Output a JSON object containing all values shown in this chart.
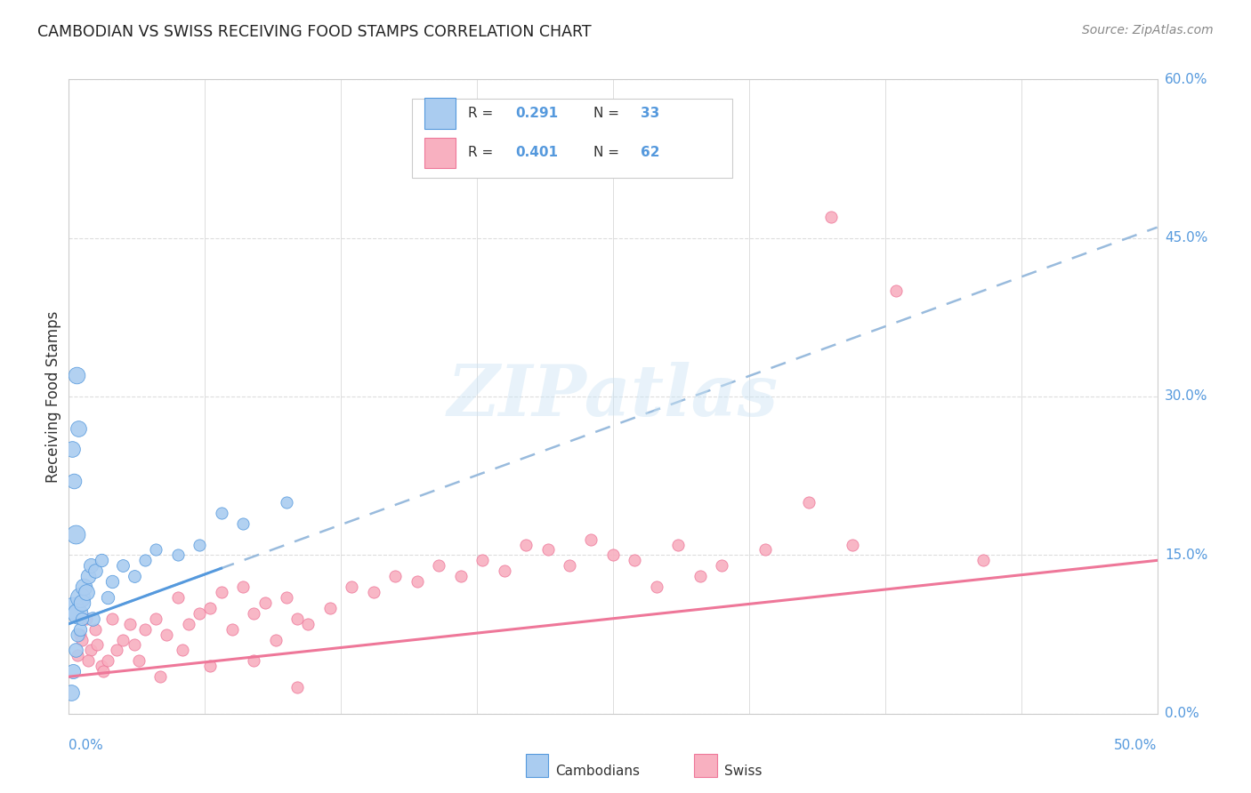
{
  "title": "CAMBODIAN VS SWISS RECEIVING FOOD STAMPS CORRELATION CHART",
  "source": "Source: ZipAtlas.com",
  "ylabel": "Receiving Food Stamps",
  "watermark": "ZIPatlas",
  "blue_color": "#aaccf0",
  "pink_color": "#f8b0c0",
  "blue_line_color": "#5599dd",
  "pink_line_color": "#ee7799",
  "blue_dashed_color": "#99bbdd",
  "xlim": [
    0.0,
    50.0
  ],
  "ylim": [
    0.0,
    60.0
  ],
  "x_ticks_pct": [
    0.0,
    50.0
  ],
  "y_ticks_pct": [
    0.0,
    15.0,
    30.0,
    45.0,
    60.0
  ],
  "cambodian_points": [
    [
      0.2,
      10.0,
      350
    ],
    [
      0.3,
      17.0,
      250
    ],
    [
      0.4,
      9.5,
      300
    ],
    [
      0.5,
      11.0,
      280
    ],
    [
      0.6,
      10.5,
      200
    ],
    [
      0.7,
      12.0,
      200
    ],
    [
      0.8,
      11.5,
      180
    ],
    [
      0.9,
      13.0,
      160
    ],
    [
      1.0,
      14.0,
      150
    ],
    [
      1.1,
      9.0,
      140
    ],
    [
      1.2,
      13.5,
      140
    ],
    [
      1.5,
      14.5,
      120
    ],
    [
      1.8,
      11.0,
      120
    ],
    [
      2.0,
      12.5,
      120
    ],
    [
      2.5,
      14.0,
      110
    ],
    [
      3.0,
      13.0,
      110
    ],
    [
      3.5,
      14.5,
      100
    ],
    [
      4.0,
      15.5,
      100
    ],
    [
      5.0,
      15.0,
      100
    ],
    [
      6.0,
      16.0,
      100
    ],
    [
      7.0,
      19.0,
      100
    ],
    [
      0.15,
      25.0,
      180
    ],
    [
      0.25,
      22.0,
      160
    ],
    [
      0.1,
      2.0,
      180
    ],
    [
      0.2,
      4.0,
      150
    ],
    [
      0.3,
      6.0,
      140
    ],
    [
      0.4,
      7.5,
      130
    ],
    [
      0.5,
      8.0,
      120
    ],
    [
      0.6,
      9.0,
      115
    ],
    [
      8.0,
      18.0,
      100
    ],
    [
      10.0,
      20.0,
      100
    ],
    [
      0.35,
      32.0,
      200
    ],
    [
      0.45,
      27.0,
      180
    ]
  ],
  "swiss_points": [
    [
      0.5,
      7.5,
      100
    ],
    [
      0.8,
      9.0,
      100
    ],
    [
      1.0,
      6.0,
      100
    ],
    [
      1.2,
      8.0,
      100
    ],
    [
      1.5,
      4.5,
      100
    ],
    [
      1.8,
      5.0,
      100
    ],
    [
      2.0,
      9.0,
      100
    ],
    [
      2.5,
      7.0,
      100
    ],
    [
      2.8,
      8.5,
      100
    ],
    [
      3.0,
      6.5,
      100
    ],
    [
      3.5,
      8.0,
      100
    ],
    [
      4.0,
      9.0,
      100
    ],
    [
      4.5,
      7.5,
      100
    ],
    [
      5.0,
      11.0,
      100
    ],
    [
      5.5,
      8.5,
      100
    ],
    [
      6.0,
      9.5,
      100
    ],
    [
      6.5,
      10.0,
      100
    ],
    [
      7.0,
      11.5,
      100
    ],
    [
      7.5,
      8.0,
      100
    ],
    [
      8.0,
      12.0,
      100
    ],
    [
      8.5,
      9.5,
      100
    ],
    [
      9.0,
      10.5,
      100
    ],
    [
      9.5,
      7.0,
      100
    ],
    [
      10.0,
      11.0,
      100
    ],
    [
      10.5,
      9.0,
      100
    ],
    [
      11.0,
      8.5,
      100
    ],
    [
      12.0,
      10.0,
      100
    ],
    [
      13.0,
      12.0,
      100
    ],
    [
      14.0,
      11.5,
      100
    ],
    [
      15.0,
      13.0,
      100
    ],
    [
      16.0,
      12.5,
      100
    ],
    [
      17.0,
      14.0,
      100
    ],
    [
      18.0,
      13.0,
      100
    ],
    [
      19.0,
      14.5,
      100
    ],
    [
      20.0,
      13.5,
      100
    ],
    [
      21.0,
      16.0,
      100
    ],
    [
      22.0,
      15.5,
      100
    ],
    [
      23.0,
      14.0,
      100
    ],
    [
      24.0,
      16.5,
      100
    ],
    [
      25.0,
      15.0,
      100
    ],
    [
      26.0,
      14.5,
      100
    ],
    [
      27.0,
      12.0,
      100
    ],
    [
      28.0,
      16.0,
      100
    ],
    [
      29.0,
      13.0,
      100
    ],
    [
      30.0,
      14.0,
      100
    ],
    [
      32.0,
      15.5,
      100
    ],
    [
      34.0,
      20.0,
      100
    ],
    [
      36.0,
      16.0,
      100
    ],
    [
      0.4,
      5.5,
      100
    ],
    [
      0.6,
      7.0,
      100
    ],
    [
      0.9,
      5.0,
      100
    ],
    [
      1.3,
      6.5,
      100
    ],
    [
      1.6,
      4.0,
      100
    ],
    [
      2.2,
      6.0,
      100
    ],
    [
      3.2,
      5.0,
      100
    ],
    [
      4.2,
      3.5,
      100
    ],
    [
      5.2,
      6.0,
      100
    ],
    [
      6.5,
      4.5,
      100
    ],
    [
      8.5,
      5.0,
      100
    ],
    [
      10.5,
      2.5,
      100
    ],
    [
      35.0,
      47.0,
      100
    ],
    [
      38.0,
      40.0,
      100
    ],
    [
      42.0,
      14.5,
      100
    ]
  ],
  "blue_trend_x": [
    0.0,
    50.0
  ],
  "blue_trend_y_intercept": 8.5,
  "blue_trend_slope": 0.75,
  "blue_solid_x_end": 7.0,
  "pink_trend_y_intercept": 3.5,
  "pink_trend_slope": 0.22
}
